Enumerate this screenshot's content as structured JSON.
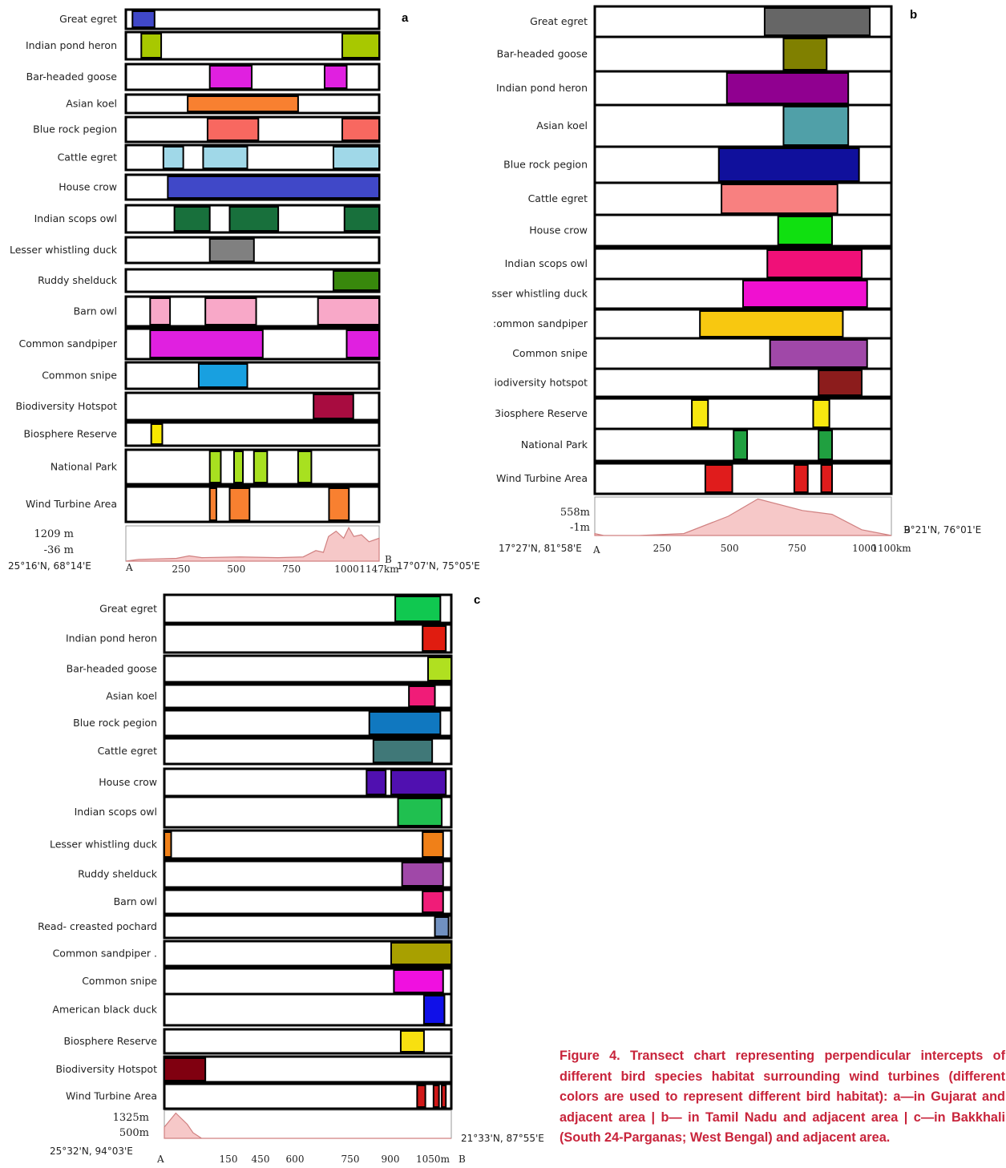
{
  "chart_data": [
    {
      "type": "transect",
      "panel_label": "a",
      "axis_max": 1147,
      "rows": [
        {
          "label": "Great egret",
          "segments": [
            {
              "from": 30,
              "to": 130,
              "color": "#4048c8"
            }
          ]
        },
        {
          "label": "Indian pond heron",
          "segments": [
            {
              "from": 70,
              "to": 160,
              "color": "#a8c800"
            },
            {
              "from": 980,
              "to": 1147,
              "color": "#a8c800"
            }
          ]
        },
        {
          "label": "Bar-headed goose",
          "segments": [
            {
              "from": 380,
              "to": 570,
              "color": "#e020e0"
            },
            {
              "from": 900,
              "to": 1000,
              "color": "#e020e0"
            }
          ]
        },
        {
          "label": "Asian koel",
          "segments": [
            {
              "from": 280,
              "to": 780,
              "color": "#f88030"
            }
          ]
        },
        {
          "label": "Blue rock pegion",
          "segments": [
            {
              "from": 370,
              "to": 600,
              "color": "#f86860"
            },
            {
              "from": 980,
              "to": 1147,
              "color": "#f86860"
            }
          ]
        },
        {
          "label": "Cattle egret",
          "segments": [
            {
              "from": 170,
              "to": 260,
              "color": "#a0d8e8"
            },
            {
              "from": 350,
              "to": 550,
              "color": "#a0d8e8"
            },
            {
              "from": 940,
              "to": 1147,
              "color": "#a0d8e8"
            }
          ]
        },
        {
          "label": "House crow",
          "segments": [
            {
              "from": 190,
              "to": 1147,
              "color": "#4048c8"
            }
          ]
        },
        {
          "label": "Indian scops owl",
          "segments": [
            {
              "from": 220,
              "to": 380,
              "color": "#18703c"
            },
            {
              "from": 470,
              "to": 690,
              "color": "#18703c"
            },
            {
              "from": 990,
              "to": 1147,
              "color": "#18703c"
            }
          ]
        },
        {
          "label": "Lesser whistling duck",
          "segments": [
            {
              "from": 380,
              "to": 580,
              "color": "#808080"
            }
          ]
        },
        {
          "label": "Ruddy shelduck",
          "segments": [
            {
              "from": 940,
              "to": 1147,
              "color": "#38880c"
            }
          ]
        },
        {
          "label": "Barn owl",
          "segments": [
            {
              "from": 110,
              "to": 200,
              "color": "#f8a8c8"
            },
            {
              "from": 360,
              "to": 590,
              "color": "#f8a8c8"
            },
            {
              "from": 870,
              "to": 1147,
              "color": "#f8a8c8"
            }
          ]
        },
        {
          "label": "Common sandpiper",
          "segments": [
            {
              "from": 110,
              "to": 620,
              "color": "#e020e0"
            },
            {
              "from": 1000,
              "to": 1147,
              "color": "#e020e0"
            }
          ]
        },
        {
          "label": "Common snipe",
          "segments": [
            {
              "from": 330,
              "to": 550,
              "color": "#18a0e0"
            }
          ]
        },
        {
          "label": "Biodiversity Hotspot",
          "segments": [
            {
              "from": 850,
              "to": 1030,
              "color": "#a80c40"
            }
          ]
        },
        {
          "label": "Biosphere Reserve",
          "segments": [
            {
              "from": 115,
              "to": 165,
              "color": "#f8e800"
            }
          ]
        },
        {
          "label": "National Park",
          "segments": [
            {
              "from": 380,
              "to": 430,
              "color": "#a8e020"
            },
            {
              "from": 490,
              "to": 530,
              "color": "#a8e020"
            },
            {
              "from": 580,
              "to": 640,
              "color": "#a8e020"
            },
            {
              "from": 780,
              "to": 840,
              "color": "#a8e020"
            }
          ]
        },
        {
          "label": "Wind Turbine Area",
          "segments": [
            {
              "from": 380,
              "to": 410,
              "color": "#f88030"
            },
            {
              "from": 470,
              "to": 560,
              "color": "#f88030"
            },
            {
              "from": 920,
              "to": 1010,
              "color": "#f88030"
            }
          ]
        }
      ],
      "elevation": {
        "max_label": "1209 m",
        "min_label": "-36 m",
        "start_coord": "25°16'N, 68°14'E",
        "end_coord": "17°07'N, 75°05'E",
        "start": "A",
        "end": "B",
        "ticks": [
          "250",
          "500",
          "750",
          "1000",
          "1147km"
        ]
      }
    },
    {
      "type": "transect",
      "panel_label": "b",
      "axis_max": 1100,
      "rows": [
        {
          "label": "Great egret",
          "segments": [
            {
              "from": 630,
              "to": 1020,
              "color": "#666666"
            }
          ]
        },
        {
          "label": "Bar-headed goose",
          "segments": [
            {
              "from": 700,
              "to": 860,
              "color": "#808000"
            }
          ]
        },
        {
          "label": "Indian pond heron",
          "segments": [
            {
              "from": 490,
              "to": 940,
              "color": "#900090"
            }
          ]
        },
        {
          "label": "Asian koel",
          "segments": [
            {
              "from": 700,
              "to": 940,
              "color": "#50a0a8"
            }
          ]
        },
        {
          "label": "Blue rock pegion",
          "segments": [
            {
              "from": 460,
              "to": 980,
              "color": "#10109c"
            }
          ]
        },
        {
          "label": "Cattle egret",
          "segments": [
            {
              "from": 470,
              "to": 900,
              "color": "#f88080"
            }
          ]
        },
        {
          "label": "House crow",
          "segments": [
            {
              "from": 680,
              "to": 880,
              "color": "#10e010"
            }
          ]
        },
        {
          "label": "Indian scops owl",
          "segments": [
            {
              "from": 640,
              "to": 990,
              "color": "#f01078"
            }
          ]
        },
        {
          "label": "sser whistling duck",
          "segments": [
            {
              "from": 550,
              "to": 1010,
              "color": "#f010d0"
            }
          ]
        },
        {
          "label": ":ommon sandpiper",
          "segments": [
            {
              "from": 390,
              "to": 920,
              "color": "#f8c810"
            }
          ]
        },
        {
          "label": "Common snipe",
          "segments": [
            {
              "from": 650,
              "to": 1010,
              "color": "#a048a8"
            }
          ]
        },
        {
          "label": "iodiversity hotspot",
          "segments": [
            {
              "from": 830,
              "to": 990,
              "color": "#8c1c1c"
            }
          ]
        },
        {
          "label": "3iosphere Reserve",
          "segments": [
            {
              "from": 360,
              "to": 420,
              "color": "#f8e810"
            },
            {
              "from": 810,
              "to": 870,
              "color": "#f8e810"
            }
          ]
        },
        {
          "label": "National Park",
          "segments": [
            {
              "from": 515,
              "to": 565,
              "color": "#20a040"
            },
            {
              "from": 830,
              "to": 880,
              "color": "#20a040"
            }
          ]
        },
        {
          "label": "Wind Turbine Area",
          "segments": [
            {
              "from": 410,
              "to": 510,
              "color": "#e01c1c"
            },
            {
              "from": 740,
              "to": 790,
              "color": "#e01c1c"
            },
            {
              "from": 840,
              "to": 880,
              "color": "#e01c1c"
            }
          ]
        }
      ],
      "elevation": {
        "max_label": "558m",
        "min_label": "-1m",
        "start_coord": "17°27'N, 81°58'E",
        "end_coord": "9°21'N, 76°01'E",
        "start": "A",
        "end": "B",
        "ticks": [
          "250",
          "500",
          "750",
          "1000",
          "1100km"
        ]
      }
    },
    {
      "type": "transect",
      "panel_label": "c",
      "axis_max": 1050,
      "rows": [
        {
          "label": "Great egret",
          "segments": [
            {
              "from": 845,
              "to": 1010,
              "color": "#10c850"
            }
          ]
        },
        {
          "label": "Indian pond heron",
          "segments": [
            {
              "from": 945,
              "to": 1030,
              "color": "#e01c10"
            }
          ]
        },
        {
          "label": "Bar-headed goose",
          "segments": [
            {
              "from": 965,
              "to": 1050,
              "color": "#b0e020"
            }
          ]
        },
        {
          "label": "Asian koel",
          "segments": [
            {
              "from": 895,
              "to": 990,
              "color": "#f01c78"
            }
          ]
        },
        {
          "label": "Blue rock pegion",
          "segments": [
            {
              "from": 750,
              "to": 1010,
              "color": "#1078c0"
            }
          ]
        },
        {
          "label": "Cattle egret",
          "segments": [
            {
              "from": 765,
              "to": 980,
              "color": "#407878"
            }
          ]
        },
        {
          "label": "House crow",
          "segments": [
            {
              "from": 740,
              "to": 810,
              "color": "#5010b0"
            },
            {
              "from": 830,
              "to": 1030,
              "color": "#5010b0"
            }
          ]
        },
        {
          "label": "Indian scops owl",
          "segments": [
            {
              "from": 855,
              "to": 1015,
              "color": "#20c050"
            }
          ]
        },
        {
          "label": "Lesser whistling duck",
          "segments": [
            {
              "from": 0,
              "to": 25,
              "color": "#f08018"
            },
            {
              "from": 945,
              "to": 1020,
              "color": "#f08018"
            }
          ]
        },
        {
          "label": "Ruddy shelduck",
          "segments": [
            {
              "from": 870,
              "to": 1020,
              "color": "#a048a8"
            }
          ]
        },
        {
          "label": "Barn owl",
          "segments": [
            {
              "from": 945,
              "to": 1020,
              "color": "#f01c78"
            }
          ]
        },
        {
          "label": "Read- creasted pochard",
          "segments": [
            {
              "from": 990,
              "to": 1040,
              "color": "#7090c0"
            }
          ]
        },
        {
          "label": "Common sandpiper .",
          "segments": [
            {
              "from": 830,
              "to": 1050,
              "color": "#a8a000"
            }
          ]
        },
        {
          "label": "Common snipe",
          "segments": [
            {
              "from": 840,
              "to": 1020,
              "color": "#f010e0"
            }
          ]
        },
        {
          "label": "American black duck",
          "segments": [
            {
              "from": 950,
              "to": 1025,
              "color": "#1010e8"
            }
          ]
        },
        {
          "label": "Biosphere Reserve",
          "segments": [
            {
              "from": 865,
              "to": 950,
              "color": "#f8e010"
            }
          ]
        },
        {
          "label": "Biodiversity Hotspot",
          "segments": [
            {
              "from": 0,
              "to": 150,
              "color": "#800010"
            }
          ]
        },
        {
          "label": "Wind Turbine Area",
          "segments": [
            {
              "from": 925,
              "to": 955,
              "color": "#d01818"
            },
            {
              "from": 985,
              "to": 1005,
              "color": "#d01818"
            },
            {
              "from": 1015,
              "to": 1030,
              "color": "#d01818"
            }
          ]
        }
      ],
      "elevation": {
        "max_label": "1325m",
        "min_label": "500m",
        "start_coord": "25°32'N, 94°03'E",
        "end_coord": "21°33'N, 87°55'E",
        "start": "A",
        "end": "B",
        "ticks": [
          "150",
          "450",
          "600",
          "750",
          "900",
          "1050m"
        ]
      }
    }
  ],
  "caption": {
    "lead": "Figure 4. Transect chart representing perpendicular intercepts of different bird species habitat surrounding wind turbines (different colors are used to represent different bird habitat): a—in Gujarat and adjacent area | b— in Tamil Nadu and adjacent area | c—in Bakkhali (South 24-Parganas; West Bengal) and adjacent area."
  },
  "colors": {
    "caption": "#c8243b",
    "elevation_fill": "#f6c8c8",
    "elevation_line": "#d08080"
  }
}
